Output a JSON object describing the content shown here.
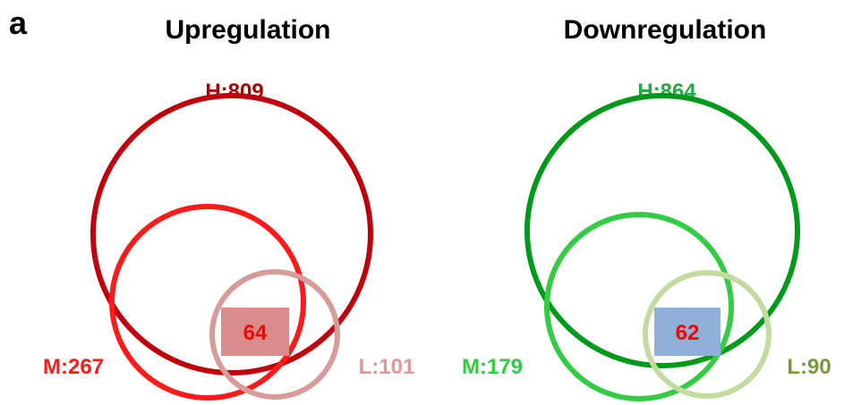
{
  "panel_label": "a",
  "up": {
    "title": "Upregulation",
    "h_label": "H:809",
    "m_label": "M:267",
    "l_label": "L:101",
    "overlap": "64",
    "colors": {
      "h": "#c0000b",
      "m": "#ff1a1a",
      "l": "#d99a9a",
      "h_text": "#b00000",
      "m_text": "#ff1a1a",
      "l_text": "#d99a9a",
      "box": "#d98c8c",
      "overlap_text": "#ff0000"
    }
  },
  "down": {
    "title": "Downregulation",
    "h_label": "H:864",
    "m_label": "M:179",
    "l_label": "L:90",
    "overlap": "62",
    "colors": {
      "h": "#009a1a",
      "m": "#33cc44",
      "l": "#c4dba0",
      "h_text": "#22aa44",
      "m_text": "#33cc44",
      "l_text": "#7a9a3a",
      "box": "#8fb0d8",
      "overlap_text": "#ff0000"
    }
  }
}
